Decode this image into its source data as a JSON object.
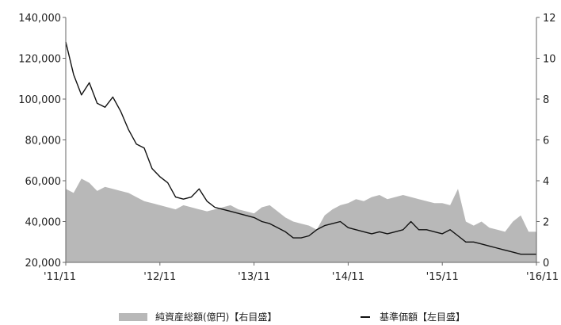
{
  "chart_data": {
    "type": "area+line",
    "x_type": "date",
    "x_tick_labels": [
      "'11/11",
      "'12/11",
      "'13/11",
      "'14/11",
      "'15/11",
      "'16/11"
    ],
    "left_axis": {
      "ylim": [
        20000,
        140000
      ],
      "tick_labels": [
        "20,000",
        "40,000",
        "60,000",
        "80,000",
        "100,000",
        "120,000",
        "140,000"
      ]
    },
    "right_axis": {
      "ylim": [
        0,
        12
      ],
      "tick_labels": [
        "0",
        "2",
        "4",
        "6",
        "8",
        "10",
        "12"
      ]
    },
    "series": [
      {
        "name": "純資産総額(億円)【右目盛】",
        "kind": "area",
        "axis": "right",
        "color": "#b8b8b8",
        "x": [
          "2011-11",
          "2011-12",
          "2012-01",
          "2012-02",
          "2012-03",
          "2012-04",
          "2012-05",
          "2012-06",
          "2012-07",
          "2012-08",
          "2012-09",
          "2012-10",
          "2012-11",
          "2012-12",
          "2013-01",
          "2013-02",
          "2013-03",
          "2013-04",
          "2013-05",
          "2013-06",
          "2013-07",
          "2013-08",
          "2013-09",
          "2013-10",
          "2013-11",
          "2013-12",
          "2014-01",
          "2014-02",
          "2014-03",
          "2014-04",
          "2014-05",
          "2014-06",
          "2014-07",
          "2014-08",
          "2014-09",
          "2014-10",
          "2014-11",
          "2014-12",
          "2015-01",
          "2015-02",
          "2015-03",
          "2015-04",
          "2015-05",
          "2015-06",
          "2015-07",
          "2015-08",
          "2015-09",
          "2015-10",
          "2015-11",
          "2015-12",
          "2016-01",
          "2016-02",
          "2016-03",
          "2016-04",
          "2016-05",
          "2016-06",
          "2016-07",
          "2016-08",
          "2016-09",
          "2016-10",
          "2016-11"
        ],
        "values": [
          3.6,
          3.4,
          4.1,
          3.9,
          3.5,
          3.7,
          3.6,
          3.5,
          3.4,
          3.2,
          3.0,
          2.9,
          2.8,
          2.7,
          2.6,
          2.8,
          2.7,
          2.6,
          2.5,
          2.6,
          2.7,
          2.8,
          2.6,
          2.5,
          2.4,
          2.7,
          2.8,
          2.5,
          2.2,
          2.0,
          1.9,
          1.8,
          1.6,
          2.3,
          2.6,
          2.8,
          2.9,
          3.1,
          3.0,
          3.2,
          3.3,
          3.1,
          3.2,
          3.3,
          3.2,
          3.1,
          3.0,
          2.9,
          2.9,
          2.8,
          3.6,
          2.0,
          1.8,
          2.0,
          1.7,
          1.6,
          1.5,
          2.0,
          2.3,
          1.5,
          1.5
        ]
      },
      {
        "name": "基準価額【左目盛】",
        "kind": "line",
        "axis": "left",
        "color": "#111111",
        "x": [
          "2011-11",
          "2011-12",
          "2012-01",
          "2012-02",
          "2012-03",
          "2012-04",
          "2012-05",
          "2012-06",
          "2012-07",
          "2012-08",
          "2012-09",
          "2012-10",
          "2012-11",
          "2012-12",
          "2013-01",
          "2013-02",
          "2013-03",
          "2013-04",
          "2013-05",
          "2013-06",
          "2013-07",
          "2013-08",
          "2013-09",
          "2013-10",
          "2013-11",
          "2013-12",
          "2014-01",
          "2014-02",
          "2014-03",
          "2014-04",
          "2014-05",
          "2014-06",
          "2014-07",
          "2014-08",
          "2014-09",
          "2014-10",
          "2014-11",
          "2014-12",
          "2015-01",
          "2015-02",
          "2015-03",
          "2015-04",
          "2015-05",
          "2015-06",
          "2015-07",
          "2015-08",
          "2015-09",
          "2015-10",
          "2015-11",
          "2015-12",
          "2016-01",
          "2016-02",
          "2016-03",
          "2016-04",
          "2016-05",
          "2016-06",
          "2016-07",
          "2016-08",
          "2016-09",
          "2016-10",
          "2016-11"
        ],
        "values": [
          128000,
          112000,
          102000,
          108000,
          98000,
          96000,
          101000,
          94000,
          85000,
          78000,
          76000,
          66000,
          62000,
          59000,
          52000,
          51000,
          52000,
          56000,
          50000,
          47000,
          46000,
          45000,
          44000,
          43000,
          42000,
          40000,
          39000,
          37000,
          35000,
          32000,
          32000,
          33000,
          36000,
          38000,
          39000,
          40000,
          37000,
          36000,
          35000,
          34000,
          35000,
          34000,
          35000,
          36000,
          40000,
          36000,
          36000,
          35000,
          34000,
          36000,
          33000,
          30000,
          30000,
          29000,
          28000,
          27000,
          26000,
          25000,
          24000,
          24000,
          24000
        ]
      }
    ],
    "legend_position": "bottom",
    "grid": false
  }
}
